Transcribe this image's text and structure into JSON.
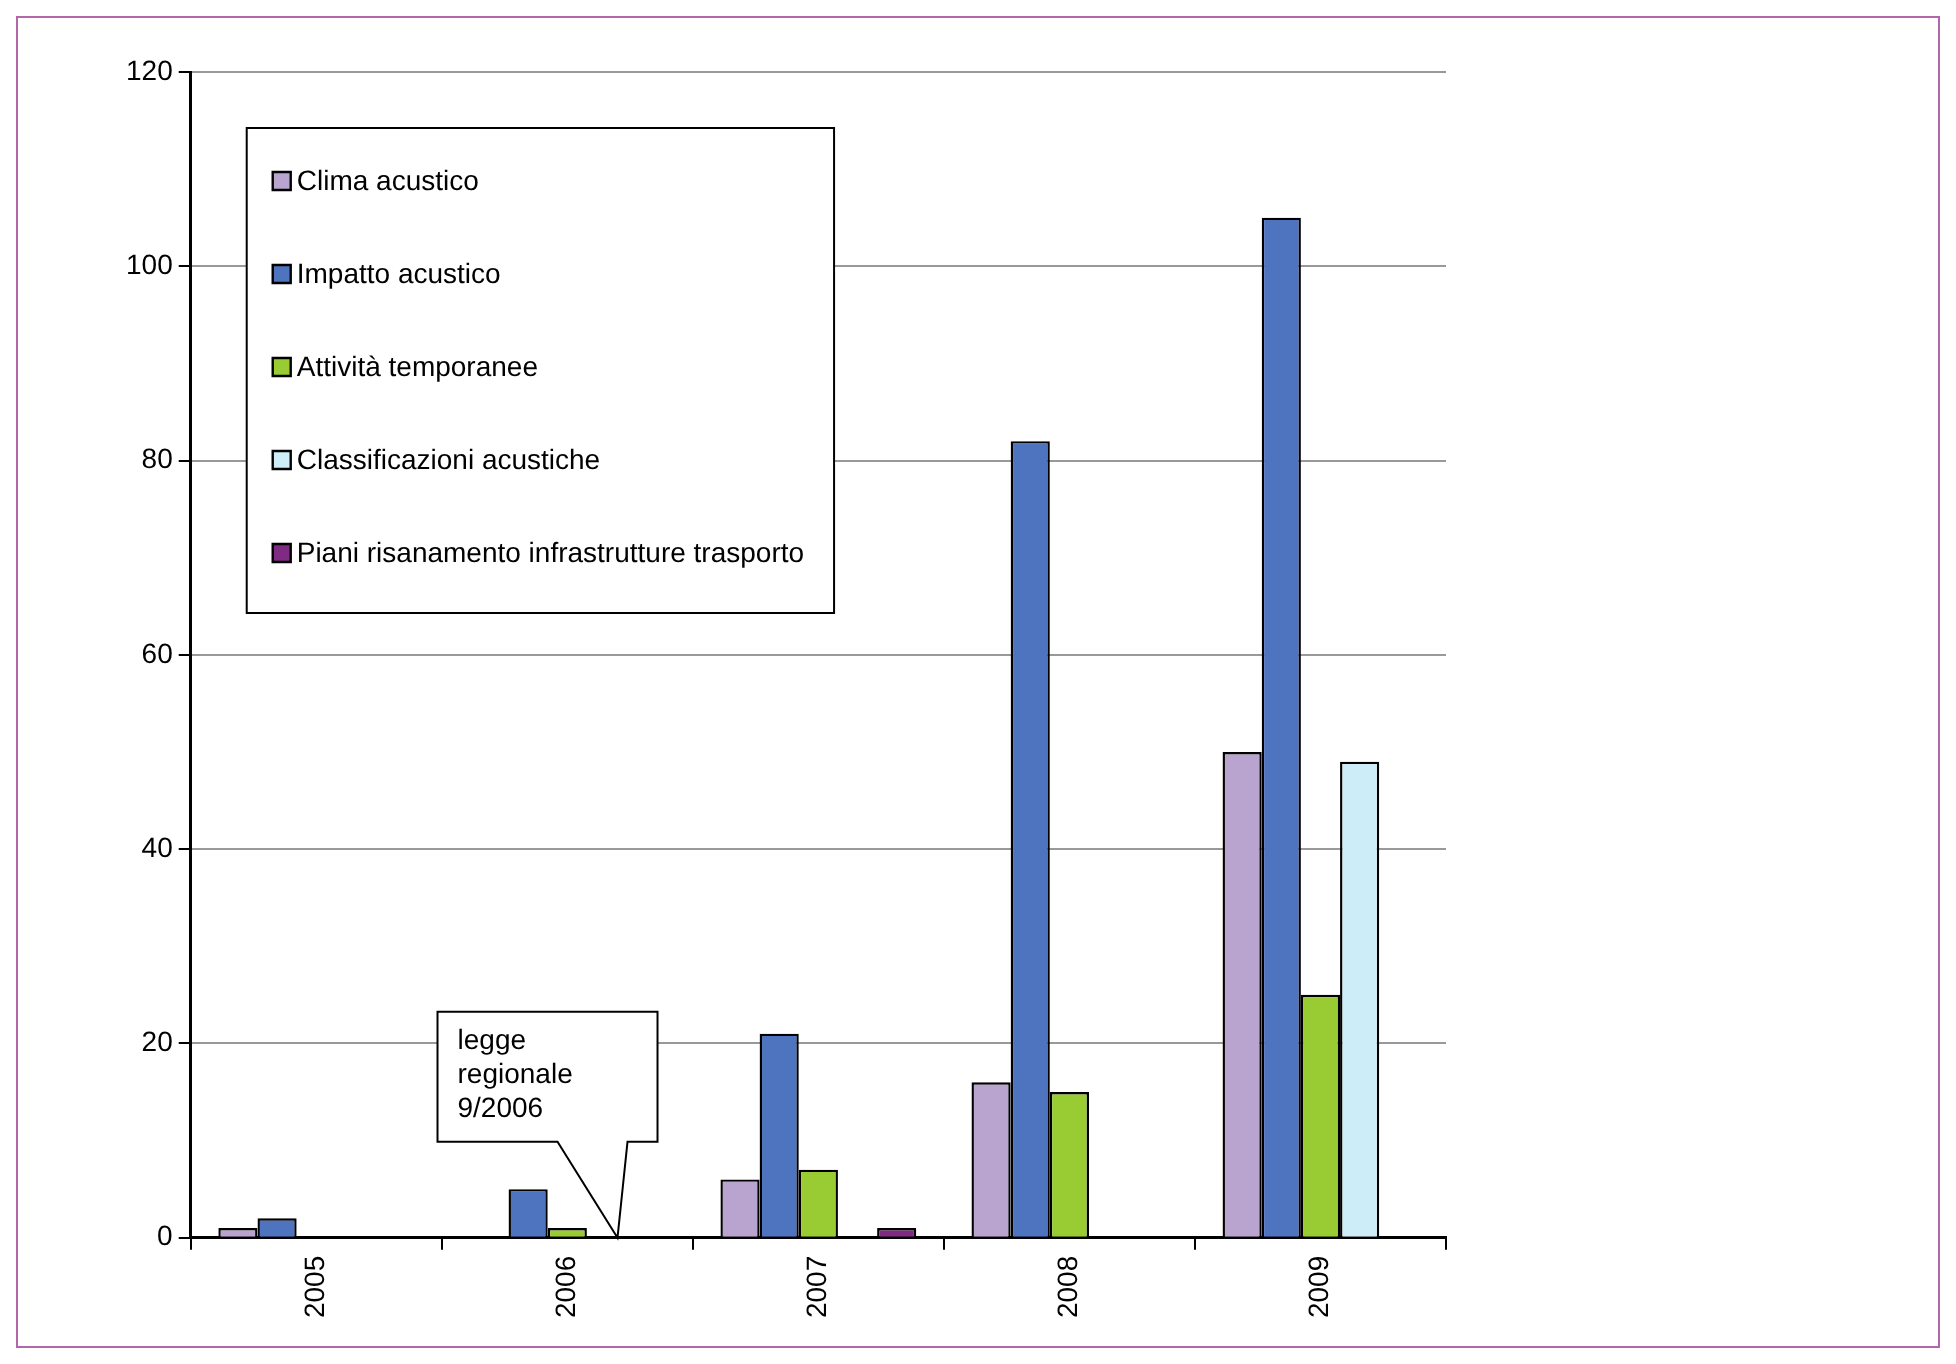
{
  "chart_data": {
    "type": "bar",
    "categories": [
      "2005",
      "2006",
      "2007",
      "2008",
      "2009"
    ],
    "series": [
      {
        "name": "Clima acustico",
        "color": "#b9a3cf",
        "values": [
          1,
          null,
          6,
          16,
          50
        ]
      },
      {
        "name": "Impatto acustico",
        "color": "#4f74bf",
        "values": [
          2,
          5,
          21,
          82,
          105
        ]
      },
      {
        "name": "Attività temporanee",
        "color": "#99cc33",
        "values": [
          null,
          1,
          7,
          15,
          25
        ]
      },
      {
        "name": "Classificazioni acustiche",
        "color": "#cdeef8",
        "values": [
          null,
          null,
          null,
          null,
          49
        ]
      },
      {
        "name": "Piani risanamento infrastrutture trasporto",
        "color": "#7f2a83",
        "values": [
          null,
          null,
          1,
          null,
          null
        ]
      }
    ],
    "ylim": [
      0,
      120
    ],
    "yticks": [
      0,
      20,
      40,
      60,
      80,
      100,
      120
    ],
    "grid": "y",
    "legend": "top left",
    "annotations": [
      "legge regionale 9/2006"
    ]
  }
}
